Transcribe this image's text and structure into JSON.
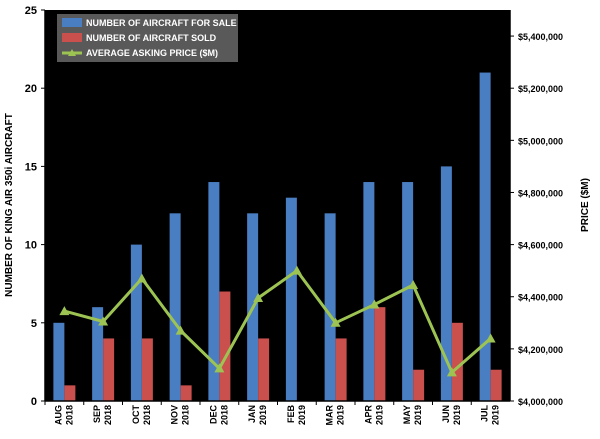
{
  "chart_data": {
    "type": "bar",
    "categories": [
      {
        "month": "AUG",
        "year": "2018"
      },
      {
        "month": "SEP",
        "year": "2018"
      },
      {
        "month": "OCT",
        "year": "2018"
      },
      {
        "month": "NOV",
        "year": "2018"
      },
      {
        "month": "DEC",
        "year": "2018"
      },
      {
        "month": "JAN",
        "year": "2019"
      },
      {
        "month": "FEB",
        "year": "2019"
      },
      {
        "month": "MAR",
        "year": "2019"
      },
      {
        "month": "APR",
        "year": "2019"
      },
      {
        "month": "MAY",
        "year": "2019"
      },
      {
        "month": "JUN",
        "year": "2019"
      },
      {
        "month": "JUL",
        "year": "2019"
      }
    ],
    "series": [
      {
        "name": "NUMBER OF AIRCRAFT FOR SALE",
        "type": "bar",
        "axis": "left",
        "color": "#4a7ec2",
        "values": [
          5,
          6,
          10,
          12,
          14,
          12,
          13,
          12,
          14,
          14,
          15,
          21
        ]
      },
      {
        "name": "NUMBER OF AIRCRAFT SOLD",
        "type": "bar",
        "axis": "left",
        "color": "#c9504d",
        "values": [
          1,
          4,
          4,
          1,
          7,
          4,
          0,
          4,
          6,
          2,
          5,
          2
        ]
      },
      {
        "name": "AVERAGE ASKING PRICE ($M)",
        "type": "line",
        "axis": "right",
        "color": "#9dc453",
        "values": [
          4345000,
          4305000,
          4470000,
          4270000,
          4125000,
          4395000,
          4500000,
          4300000,
          4370000,
          4445000,
          4110000,
          4240000
        ]
      }
    ],
    "ylabel": "NUMBER OF KING AIR 350i AIRCRAFT",
    "ylim": [
      0,
      25
    ],
    "yticks": [
      0,
      5,
      10,
      15,
      20,
      25
    ],
    "y2label": "PRICE ($M)",
    "y2lim": [
      4000000,
      5500000
    ],
    "y2ticks": [
      "$4,000,000",
      "$4,200,000",
      "$4,400,000",
      "$4,600,000",
      "$4,800,000",
      "$5,000,000",
      "$5,200,000",
      "$5,400,000"
    ],
    "legend_position": "top-left",
    "grid": false,
    "plot_background": "#000000"
  }
}
